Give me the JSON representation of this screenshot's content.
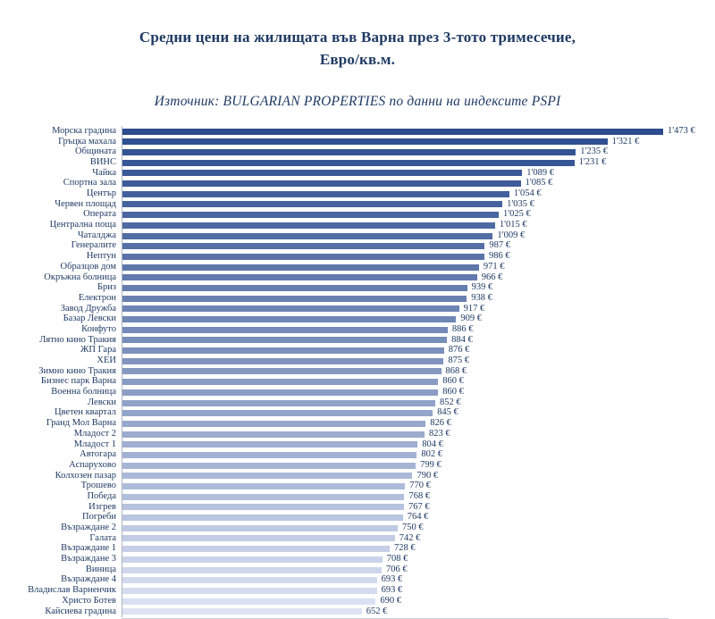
{
  "title": {
    "line1": "Средни цени на жилищата във Варна през 3-тото тримесечие,",
    "line2": "Евро/кв.м."
  },
  "subtitle": "Източник: BULGARIAN PROPERTIES по данни на индексите PSPI",
  "chart_data": {
    "type": "bar",
    "orientation": "horizontal",
    "title": "Средни цени на жилищата във Варна през 3-тото тримесечие, Евро/кв.м.",
    "subtitle": "Източник: BULGARIAN PROPERTIES по данни на индексите PSPI",
    "xlabel": "",
    "ylabel": "",
    "xlim": [
      0,
      1473
    ],
    "grid": false,
    "legend": false,
    "value_suffix": "€",
    "bar_color_start": "#2b4c8e",
    "bar_color_end": "#dde3f4",
    "text_color": "#1f3a64",
    "categories": [
      "Морска градина",
      "Гръцка махала",
      "Общината",
      "ВИНС",
      "Чайка",
      "Спортна зала",
      "Център",
      "Червен площад",
      "Операта",
      "Централна поща",
      "Чаталджа",
      "Генералите",
      "Нептун",
      "Образцов дом",
      "Окръжна болница",
      "Бриз",
      "Електрон",
      "Завод Дружба",
      "Базар Левски",
      "Конфуто",
      "Лятно кино Тракия",
      "ЖП Гара",
      "ХЕИ",
      "Зимно кино Тракия",
      "Бизнес парк Варна",
      "Военна болница",
      "Левски",
      "Цветен квартал",
      "Гранд Мол Варна",
      "Младост 2",
      "Младост 1",
      "Автогара",
      "Аспарухово",
      "Колхозен пазар",
      "Трошево",
      "Победа",
      "Изгрев",
      "Погреби",
      "Възраждане 2",
      "Галата",
      "Възраждане 1",
      "Възраждане 3",
      "Виница",
      "Възраждане 4",
      "Владислав Варненчик",
      "Христо Ботев",
      "Кайсиева градина"
    ],
    "values": [
      1473,
      1321,
      1235,
      1231,
      1089,
      1085,
      1054,
      1035,
      1025,
      1015,
      1009,
      987,
      986,
      971,
      966,
      939,
      938,
      917,
      909,
      886,
      884,
      876,
      875,
      868,
      860,
      860,
      852,
      845,
      826,
      823,
      804,
      802,
      799,
      790,
      770,
      768,
      767,
      764,
      750,
      742,
      728,
      708,
      706,
      693,
      693,
      690,
      652
    ],
    "value_labels": [
      "1'473 €",
      "1'321 €",
      "1'235 €",
      "1'231 €",
      "1'089 €",
      "1'085 €",
      "1'054 €",
      "1'035 €",
      "1'025 €",
      "1'015 €",
      "1'009 €",
      "987 €",
      "986 €",
      "971 €",
      "966 €",
      "939 €",
      "938 €",
      "917 €",
      "909 €",
      "886 €",
      "884 €",
      "876 €",
      "875 €",
      "868 €",
      "860 €",
      "860 €",
      "852 €",
      "845 €",
      "826 €",
      "823 €",
      "804 €",
      "802 €",
      "799 €",
      "790 €",
      "770 €",
      "768 €",
      "767 €",
      "764 €",
      "750 €",
      "742 €",
      "728 €",
      "708 €",
      "706 €",
      "693 €",
      "693 €",
      "690 €",
      "652 €"
    ]
  }
}
